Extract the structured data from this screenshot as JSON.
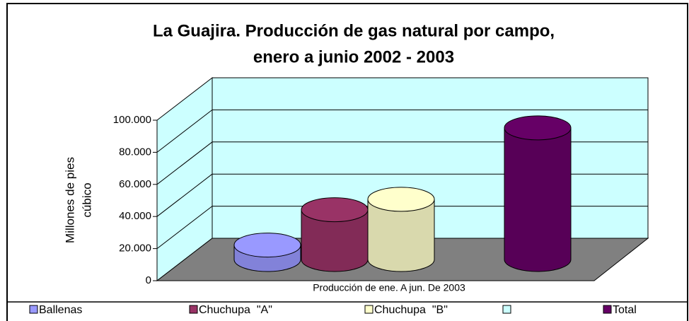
{
  "chart_data": {
    "type": "bar3d",
    "title": [
      "La Guajira. Producción de gas natural por campo,",
      "enero a junio   2002 - 2003"
    ],
    "y_label": [
      "Millones de pies",
      "cúbico"
    ],
    "x_label": "Producción de ene. A jun. De 2003",
    "series": [
      {
        "name": "Ballenas",
        "color": "#9999ff",
        "values": [
          9000
        ]
      },
      {
        "name": "Chuchupa  \"A\"",
        "color": "#993366",
        "values": [
          31000
        ]
      },
      {
        "name": "Chuchupa  \"B\"",
        "color": "#ffffcc",
        "values": [
          37500
        ]
      },
      {
        "name": "Total",
        "color": "#660066",
        "values": [
          82000
        ]
      }
    ],
    "ylim": [
      0,
      100000
    ],
    "yticks": [
      0,
      {
        "value": 20000,
        "label": "20.000"
      },
      {
        "value": 40000,
        "label": "40.000"
      },
      {
        "value": 60000,
        "label": "60.000"
      },
      {
        "value": 80000,
        "label": "80.000"
      },
      {
        "value": 100000,
        "label": "100.000"
      }
    ],
    "grid": true
  }
}
